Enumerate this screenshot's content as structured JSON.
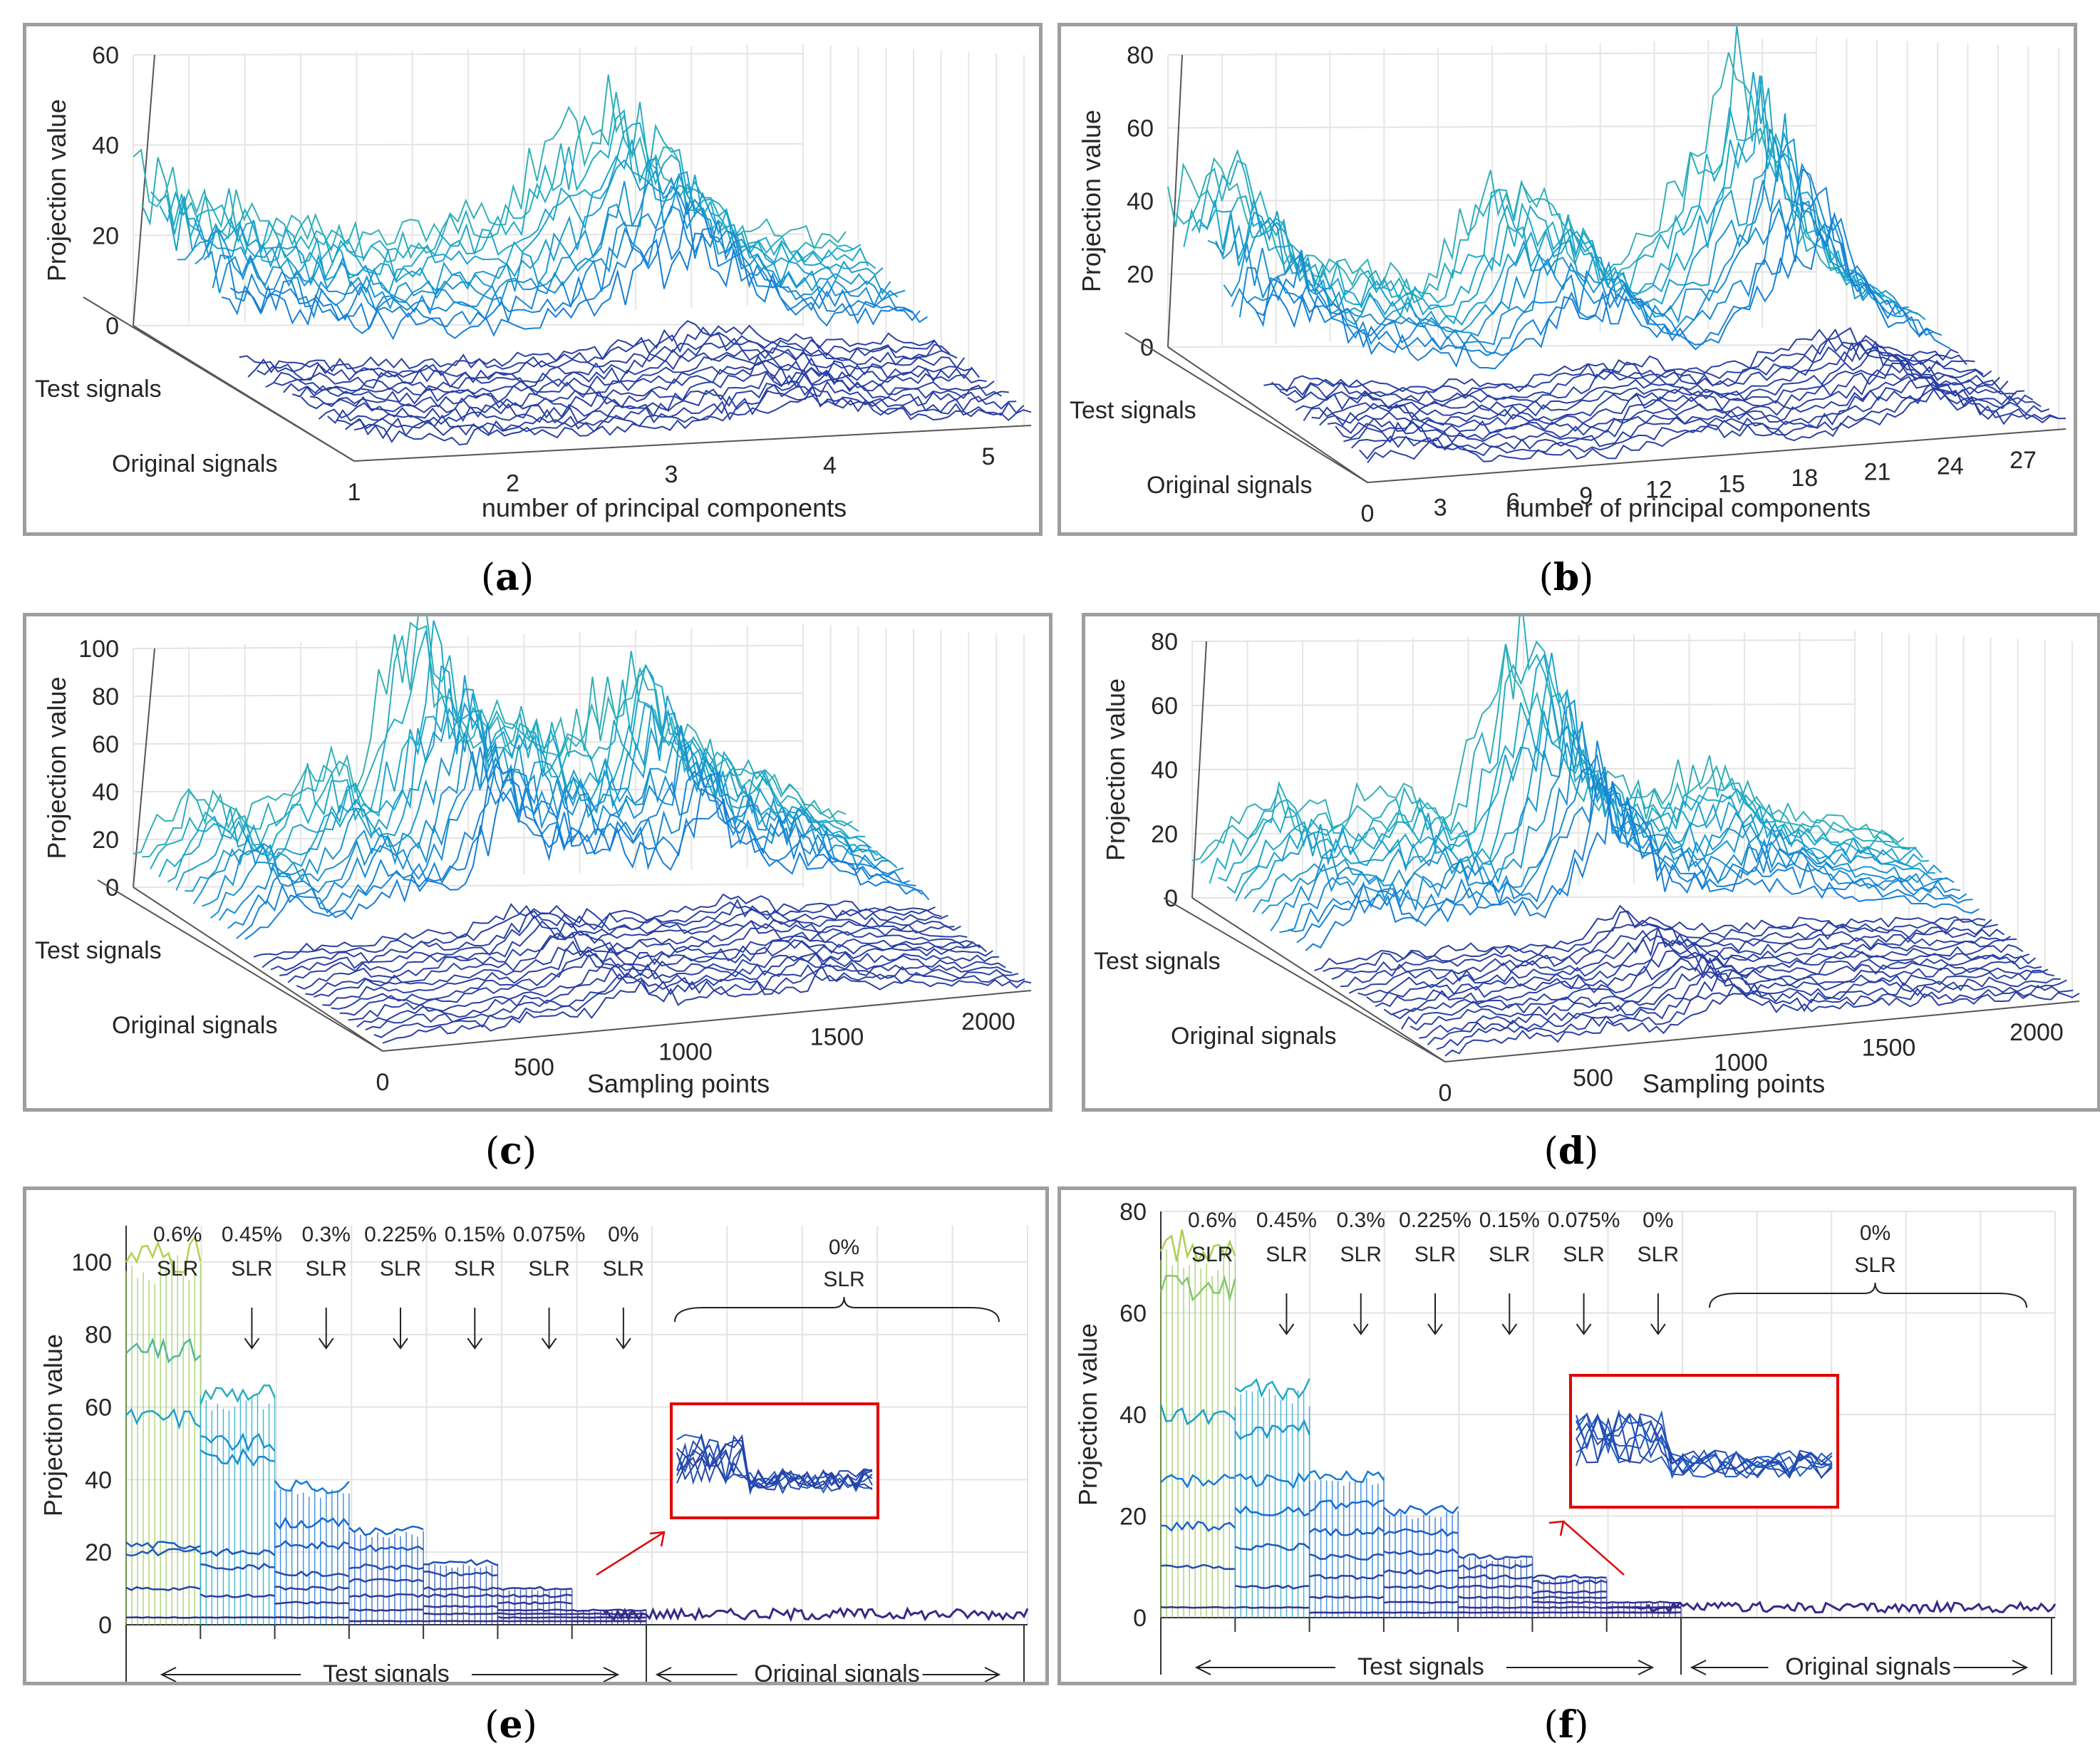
{
  "chart_data": [
    {
      "id": "a",
      "type": "surface3d",
      "caption": "a",
      "ylabel": "Projection value",
      "xlabel": "number of principal components",
      "yticks": [
        "0",
        "20",
        "40",
        "60"
      ],
      "ylim": [
        0,
        60
      ],
      "xticks": [
        "1",
        "2",
        "3",
        "4",
        "5"
      ],
      "depth_labels": [
        "Test signals",
        "Original signals"
      ],
      "peak_profile": [
        32,
        20,
        14,
        18,
        42,
        12,
        8
      ]
    },
    {
      "id": "b",
      "type": "surface3d",
      "caption": "b",
      "ylabel": "Projection value",
      "xlabel": "number of principal components",
      "yticks": [
        "0",
        "20",
        "40",
        "60",
        "80"
      ],
      "ylim": [
        0,
        80
      ],
      "xticks": [
        "0",
        "3",
        "6",
        "9",
        "12",
        "15",
        "18",
        "21",
        "24",
        "27"
      ],
      "depth_labels": [
        "Test signals",
        "Original signals"
      ],
      "peak_profile": [
        40,
        45,
        20,
        18,
        10,
        35,
        30,
        10,
        30,
        68,
        20,
        5
      ]
    },
    {
      "id": "c",
      "type": "surface3d",
      "caption": "c",
      "ylabel": "Projection value",
      "xlabel": "Sampling points",
      "yticks": [
        "0",
        "20",
        "40",
        "60",
        "80",
        "100"
      ],
      "ylim": [
        0,
        100
      ],
      "xticks": [
        "0",
        "500",
        "1000",
        "1500",
        "2000"
      ],
      "depth_labels": [
        "Test signals",
        "Original signals"
      ],
      "peak_profile": [
        12,
        40,
        22,
        45,
        38,
        100,
        65,
        60,
        50,
        80,
        45,
        38,
        20,
        8
      ]
    },
    {
      "id": "d",
      "type": "surface3d",
      "caption": "d",
      "ylabel": "Projection value",
      "xlabel": "Sampling points",
      "yticks": [
        "0",
        "20",
        "40",
        "60",
        "80"
      ],
      "ylim": [
        0,
        80
      ],
      "xticks": [
        "0",
        "500",
        "1000",
        "1500",
        "2000"
      ],
      "depth_labels": [
        "Test signals",
        "Original signals"
      ],
      "peak_profile": [
        10,
        30,
        20,
        28,
        18,
        75,
        30,
        22,
        28,
        15,
        10,
        5
      ]
    },
    {
      "id": "e",
      "type": "line",
      "caption": "e",
      "ylabel": "Projection value",
      "ylim": [
        0,
        110
      ],
      "yticks": [
        "0",
        "20",
        "40",
        "60",
        "80",
        "100"
      ],
      "groups": [
        {
          "pct": "0.6%",
          "unit": "SLR",
          "levels": [
            102,
            75,
            57,
            22,
            20,
            10,
            2
          ]
        },
        {
          "pct": "0.45%",
          "unit": "SLR",
          "levels": [
            64,
            50,
            46,
            20,
            16,
            8,
            2
          ]
        },
        {
          "pct": "0.3%",
          "unit": "SLR",
          "levels": [
            38,
            28,
            22,
            14,
            10,
            6,
            2
          ]
        },
        {
          "pct": "0.225%",
          "unit": "SLR",
          "levels": [
            26,
            21,
            16,
            12,
            8,
            4,
            1
          ]
        },
        {
          "pct": "0.15%",
          "unit": "SLR",
          "levels": [
            17,
            14,
            10,
            8,
            5,
            3,
            1
          ]
        },
        {
          "pct": "0.075%",
          "unit": "SLR",
          "levels": [
            10,
            8,
            6,
            4,
            3,
            2,
            1
          ]
        },
        {
          "pct": "0%",
          "unit": "SLR",
          "levels": [
            4,
            3,
            2,
            2,
            1,
            1,
            1
          ]
        }
      ],
      "original_group": {
        "pct": "0%",
        "unit": "SLR",
        "level": 3
      },
      "bottom_labels": [
        "Test signals",
        "Original signals"
      ]
    },
    {
      "id": "f",
      "type": "line",
      "caption": "f",
      "ylabel": "Projection value",
      "ylim": [
        0,
        80
      ],
      "yticks": [
        "0",
        "20",
        "40",
        "60",
        "80"
      ],
      "groups": [
        {
          "pct": "0.6%",
          "unit": "SLR",
          "levels": [
            73,
            65,
            40,
            27,
            18,
            10,
            2
          ]
        },
        {
          "pct": "0.45%",
          "unit": "SLR",
          "levels": [
            45,
            37,
            27,
            21,
            14,
            6,
            2
          ]
        },
        {
          "pct": "0.3%",
          "unit": "SLR",
          "levels": [
            28,
            22,
            17,
            12,
            8,
            4,
            1
          ]
        },
        {
          "pct": "0.225%",
          "unit": "SLR",
          "levels": [
            21,
            17,
            13,
            9,
            6,
            3,
            1
          ]
        },
        {
          "pct": "0.15%",
          "unit": "SLR",
          "levels": [
            12,
            10,
            8,
            6,
            4,
            2,
            1
          ]
        },
        {
          "pct": "0.075%",
          "unit": "SLR",
          "levels": [
            8,
            7,
            5,
            4,
            3,
            2,
            1
          ]
        },
        {
          "pct": "0%",
          "unit": "SLR",
          "levels": [
            3,
            2,
            2,
            2,
            1,
            1,
            1
          ]
        }
      ],
      "original_group": {
        "pct": "0%",
        "unit": "SLR",
        "level": 2
      },
      "bottom_labels": [
        "Test signals",
        "Original signals"
      ]
    }
  ]
}
